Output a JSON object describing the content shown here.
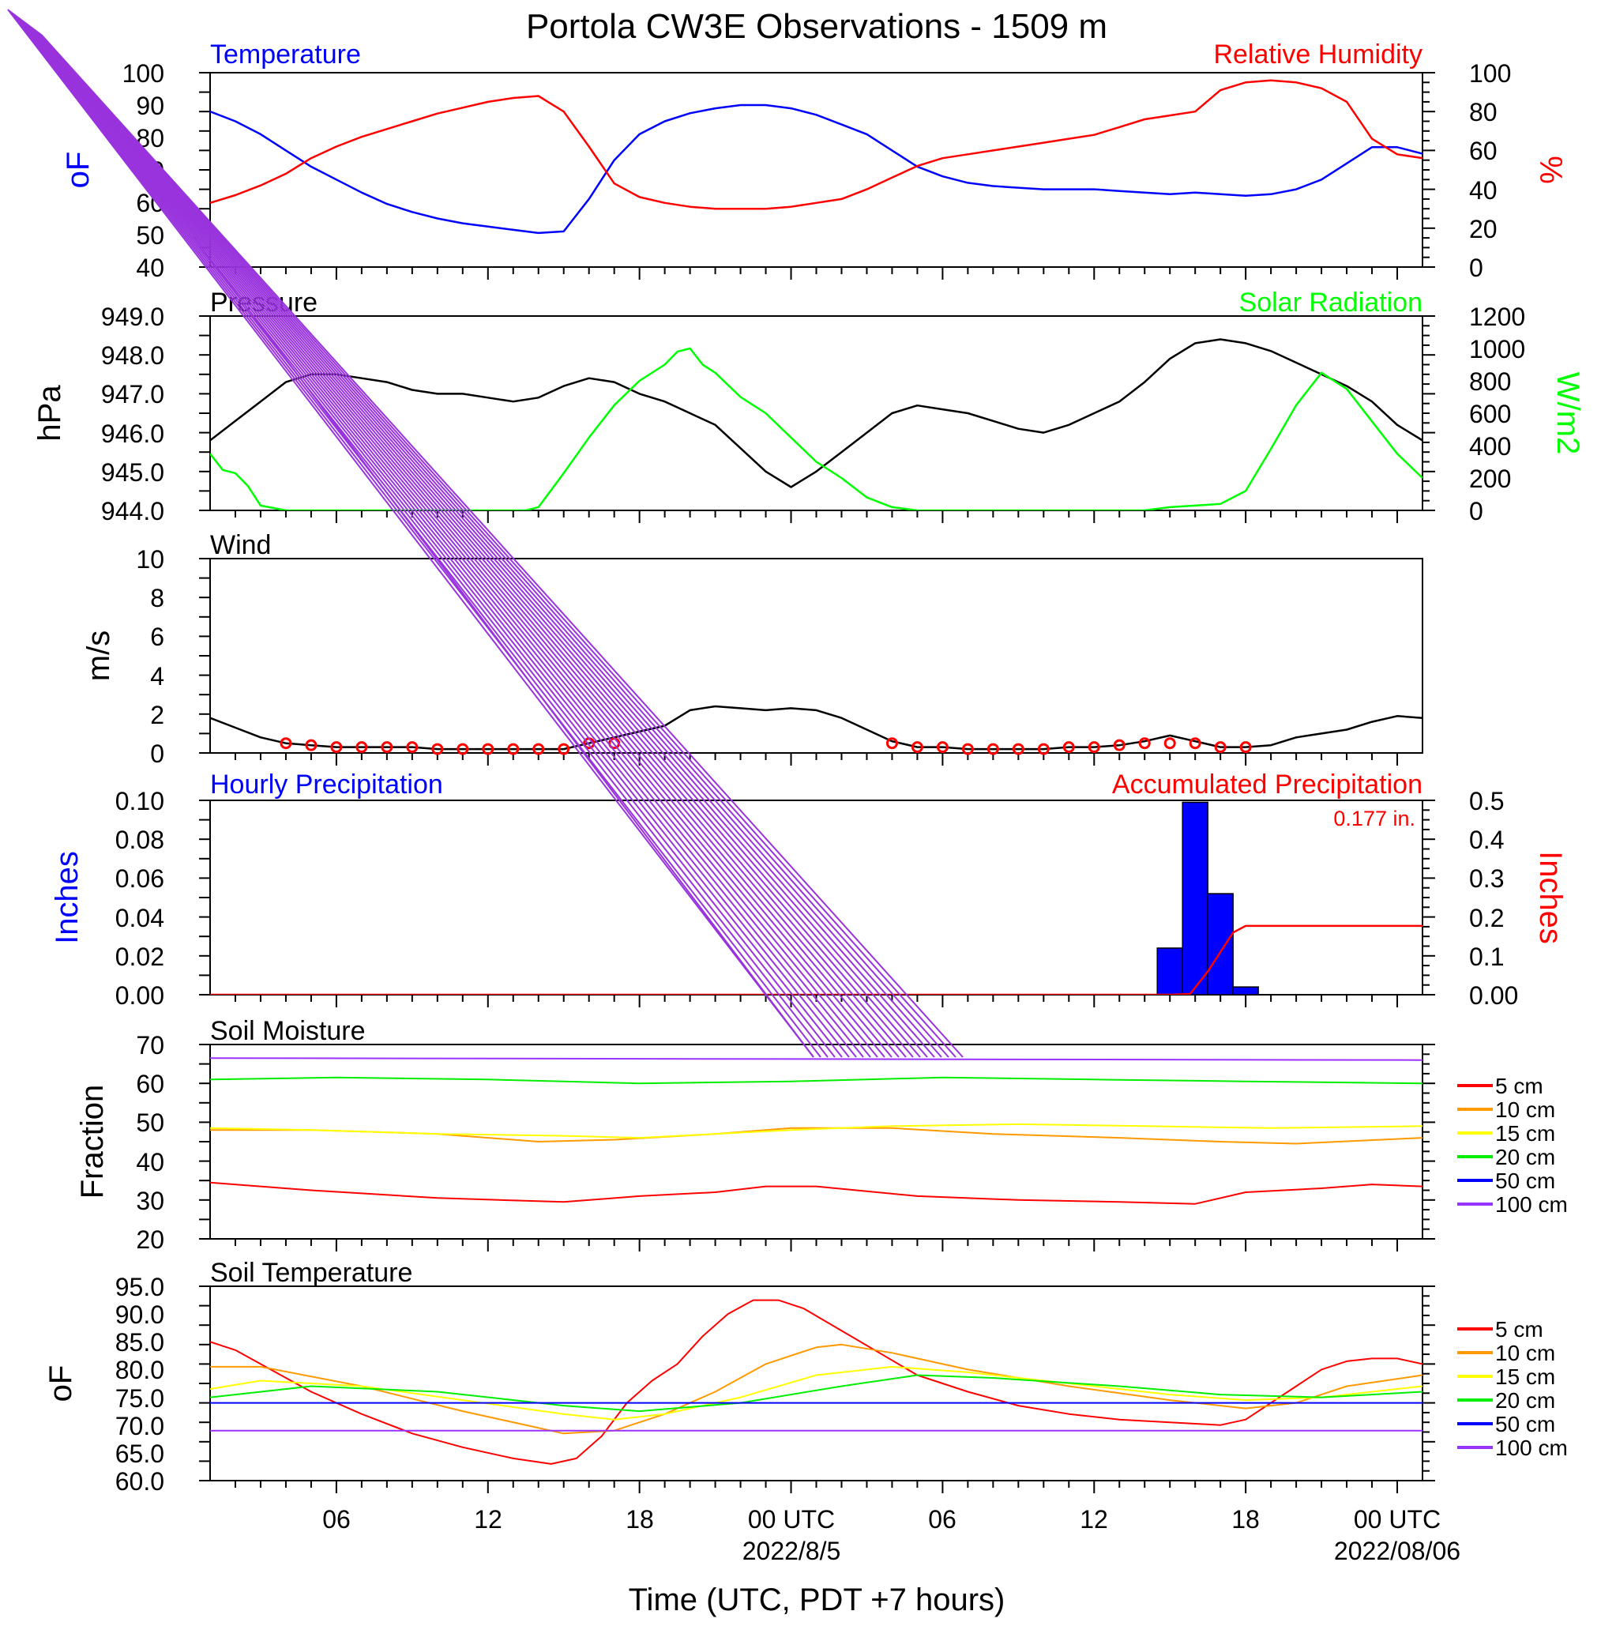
{
  "title": "Portola CW3E Observations - 1509 m",
  "x_axis": {
    "label": "Time (UTC, PDT +7 hours)",
    "ticks": [
      "06",
      "12",
      "18",
      "00 UTC",
      "06",
      "12",
      "18",
      "00 UTC"
    ],
    "dates": [
      "2022/8/5",
      "2022/08/06"
    ]
  },
  "panels": {
    "temp_rh": {
      "left_title": "Temperature",
      "right_title": "Relative Humidity",
      "left_unit": "oF",
      "right_unit": "%",
      "left_ticks": [
        "100",
        "90",
        "80",
        "70",
        "60",
        "50",
        "40"
      ],
      "right_ticks": [
        "100",
        "80",
        "60",
        "40",
        "20",
        "0"
      ]
    },
    "pressure_solar": {
      "left_title": "Pressure",
      "right_title": "Solar Radiation",
      "left_unit": "hPa",
      "right_unit": "W/m2",
      "left_ticks": [
        "949.0",
        "948.0",
        "947.0",
        "946.0",
        "945.0",
        "944.0"
      ],
      "right_ticks": [
        "1200",
        "1000",
        "800",
        "600",
        "400",
        "200",
        "0"
      ]
    },
    "wind": {
      "title": "Wind",
      "unit": "m/s",
      "ticks": [
        "10",
        "8",
        "6",
        "4",
        "2",
        "0"
      ]
    },
    "precip": {
      "left_title": "Hourly Precipitation",
      "right_title": "Accumulated Precipitation",
      "total": "0.177 in.",
      "left_unit": "Inches",
      "right_unit": "Inches",
      "left_ticks": [
        "0.10",
        "0.08",
        "0.06",
        "0.04",
        "0.02",
        "0.00"
      ],
      "right_ticks": [
        "0.5",
        "0.4",
        "0.3",
        "0.2",
        "0.1",
        "0.00"
      ]
    },
    "soil_moisture": {
      "title": "Soil Moisture",
      "unit": "Fraction",
      "ticks": [
        "70",
        "60",
        "50",
        "40",
        "30",
        "20"
      ]
    },
    "soil_temp": {
      "title": "Soil Temperature",
      "unit": "oF",
      "ticks": [
        "95.0",
        "90.0",
        "85.0",
        "80.0",
        "75.0",
        "70.0",
        "65.0",
        "60.0"
      ]
    }
  },
  "depth_legend": [
    {
      "label": "5 cm",
      "color": "#ff0000"
    },
    {
      "label": "10 cm",
      "color": "#ff9900"
    },
    {
      "label": "15 cm",
      "color": "#ffff00"
    },
    {
      "label": "20 cm",
      "color": "#00ee00"
    },
    {
      "label": "50 cm",
      "color": "#0000ff"
    },
    {
      "label": "100 cm",
      "color": "#9933ff"
    }
  ],
  "colors": {
    "temperature": "#0000ff",
    "humidity": "#ff0000",
    "pressure": "#000000",
    "solar": "#00ff00",
    "wind_speed": "#000000",
    "wind_barbs": "#ff0000",
    "hourly_precip": "#0000ff",
    "accum_precip": "#ff0000",
    "artifact_lines": "#9933dd"
  },
  "chart_data": {
    "type": "line",
    "x_unit": "hours since 2022-08-04 00 UTC",
    "x_range": [
      1,
      49
    ],
    "series": [
      {
        "name": "Temperature",
        "panel": "temp_rh",
        "axis": "left",
        "ylim": [
          40,
          100
        ],
        "x": [
          1,
          2,
          3,
          4,
          5,
          6,
          7,
          8,
          9,
          10,
          11,
          12,
          13,
          14,
          15,
          16,
          17,
          18,
          19,
          20,
          21,
          22,
          23,
          24,
          25,
          26,
          27,
          28,
          29,
          30,
          31,
          32,
          33,
          34,
          35,
          36,
          37,
          38,
          39,
          40,
          41,
          42,
          43,
          44,
          45,
          46,
          47,
          48,
          49
        ],
        "y": [
          88,
          85,
          81,
          76,
          71,
          67,
          63,
          59.5,
          57,
          55,
          53.5,
          52.5,
          51.5,
          50.5,
          51,
          61,
          73,
          81,
          85,
          87.5,
          89,
          90,
          90,
          89,
          87,
          84,
          81,
          76,
          71,
          68,
          66,
          65,
          64.5,
          64,
          64,
          64,
          63.5,
          63,
          62.5,
          63,
          62.5,
          62,
          62.5,
          64,
          67,
          72,
          77,
          77,
          75
        ]
      },
      {
        "name": "Relative Humidity",
        "panel": "temp_rh",
        "axis": "right",
        "ylim": [
          0,
          100
        ],
        "x": [
          1,
          2,
          3,
          4,
          5,
          6,
          7,
          8,
          9,
          10,
          11,
          12,
          13,
          14,
          15,
          16,
          17,
          18,
          19,
          20,
          21,
          22,
          23,
          24,
          25,
          26,
          27,
          28,
          29,
          30,
          31,
          32,
          33,
          34,
          35,
          36,
          37,
          38,
          39,
          40,
          41,
          42,
          43,
          44,
          45,
          46,
          47,
          48,
          49
        ],
        "y": [
          33,
          37,
          42,
          48,
          56,
          62,
          67,
          71,
          75,
          79,
          82,
          85,
          87,
          88,
          80,
          62,
          43,
          36,
          33,
          31,
          30,
          30,
          30,
          31,
          33,
          35,
          40,
          46,
          52,
          56,
          58,
          60,
          62,
          64,
          66,
          68,
          72,
          76,
          78,
          80,
          91,
          95,
          96,
          95,
          92,
          85,
          66,
          58,
          56
        ]
      },
      {
        "name": "Pressure",
        "panel": "pressure_solar",
        "axis": "left",
        "ylim": [
          944,
          949
        ],
        "x": [
          1,
          2,
          3,
          4,
          5,
          6,
          7,
          8,
          9,
          10,
          11,
          12,
          13,
          14,
          15,
          16,
          17,
          18,
          19,
          20,
          21,
          22,
          23,
          24,
          25,
          26,
          27,
          28,
          29,
          30,
          31,
          32,
          33,
          34,
          35,
          36,
          37,
          38,
          39,
          40,
          41,
          42,
          43,
          44,
          45,
          46,
          47,
          48,
          49
        ],
        "y": [
          945.8,
          946.3,
          946.8,
          947.3,
          947.5,
          947.5,
          947.4,
          947.3,
          947.1,
          947.0,
          947.0,
          946.9,
          946.8,
          946.9,
          947.2,
          947.4,
          947.3,
          947.0,
          946.8,
          946.5,
          946.2,
          945.6,
          945.0,
          944.6,
          945.0,
          945.5,
          946.0,
          946.5,
          946.7,
          946.6,
          946.5,
          946.3,
          946.1,
          946.0,
          946.2,
          946.5,
          946.8,
          947.3,
          947.9,
          948.3,
          948.4,
          948.3,
          948.1,
          947.8,
          947.5,
          947.2,
          946.8,
          946.2,
          945.8
        ]
      },
      {
        "name": "Solar Radiation",
        "panel": "pressure_solar",
        "axis": "right",
        "ylim": [
          0,
          1200
        ],
        "x": [
          1,
          1.5,
          2,
          2.5,
          3,
          4,
          8,
          12,
          13.5,
          14,
          15,
          16,
          17,
          18,
          19,
          19.5,
          20,
          20.5,
          21,
          22,
          23,
          24,
          25,
          26,
          27,
          28,
          29,
          31,
          35,
          38,
          39,
          40,
          41,
          42,
          43,
          44,
          45,
          46,
          47,
          48,
          49
        ],
        "y": [
          350,
          250,
          230,
          150,
          30,
          0,
          0,
          0,
          0,
          20,
          230,
          450,
          650,
          800,
          900,
          980,
          1000,
          900,
          850,
          700,
          600,
          450,
          300,
          200,
          80,
          20,
          0,
          0,
          0,
          0,
          20,
          30,
          40,
          120,
          380,
          650,
          850,
          750,
          550,
          350,
          200
        ]
      },
      {
        "name": "Wind Speed",
        "panel": "wind",
        "axis": "left",
        "ylim": [
          0,
          10
        ],
        "x": [
          1,
          2,
          3,
          4,
          5,
          6,
          7,
          8,
          9,
          10,
          11,
          12,
          13,
          14,
          15,
          16,
          17,
          18,
          19,
          20,
          21,
          22,
          23,
          24,
          25,
          26,
          27,
          28,
          29,
          30,
          31,
          32,
          33,
          34,
          35,
          36,
          37,
          38,
          39,
          40,
          41,
          42,
          43,
          44,
          45,
          46,
          47,
          48,
          49
        ],
        "y": [
          1.8,
          1.3,
          0.8,
          0.5,
          0.4,
          0.3,
          0.3,
          0.3,
          0.3,
          0.2,
          0.2,
          0.2,
          0.2,
          0.2,
          0.2,
          0.5,
          0.8,
          1.1,
          1.4,
          2.2,
          2.4,
          2.3,
          2.2,
          2.3,
          2.2,
          1.8,
          1.2,
          0.6,
          0.3,
          0.3,
          0.2,
          0.2,
          0.2,
          0.2,
          0.3,
          0.3,
          0.4,
          0.6,
          0.9,
          0.6,
          0.3,
          0.3,
          0.4,
          0.8,
          1.0,
          1.2,
          1.6,
          1.9,
          1.8
        ]
      },
      {
        "name": "Hourly Precipitation",
        "panel": "precip",
        "axis": "left",
        "type": "bar",
        "ylim": [
          0,
          0.1
        ],
        "x": [
          39,
          40,
          41,
          42
        ],
        "y": [
          0.024,
          0.099,
          0.052,
          0.004
        ]
      },
      {
        "name": "Accumulated Precipitation",
        "panel": "precip",
        "axis": "right",
        "ylim": [
          0,
          0.5
        ],
        "x": [
          1,
          39,
          39.8,
          40.5,
          41,
          41.5,
          42,
          49
        ],
        "y": [
          0,
          0,
          0.002,
          0.06,
          0.11,
          0.16,
          0.177,
          0.177
        ]
      },
      {
        "name": "5 cm",
        "panel": "soil_moisture",
        "ylim": [
          20,
          70
        ],
        "x": [
          1,
          5,
          10,
          15,
          18,
          21,
          23,
          25,
          29,
          33,
          37,
          40,
          42,
          45,
          47,
          49
        ],
        "y": [
          34.5,
          32.5,
          30.5,
          29.5,
          31,
          32,
          33.5,
          33.5,
          31,
          30,
          29.5,
          29,
          32,
          33,
          34,
          33.5
        ]
      },
      {
        "name": "10 cm",
        "panel": "soil_moisture",
        "ylim": [
          20,
          70
        ],
        "x": [
          1,
          5,
          10,
          14,
          17,
          21,
          24,
          28,
          32,
          37,
          41,
          44,
          49
        ],
        "y": [
          48,
          48,
          47,
          45,
          45.5,
          47,
          48.5,
          48.5,
          47,
          46,
          45,
          44.5,
          46
        ]
      },
      {
        "name": "15 cm",
        "panel": "soil_moisture",
        "ylim": [
          20,
          70
        ],
        "x": [
          1,
          5,
          10,
          15,
          18,
          24,
          28,
          33,
          38,
          43,
          49
        ],
        "y": [
          48.5,
          48,
          47,
          46.5,
          46,
          48,
          49,
          49.5,
          49,
          48.5,
          49
        ]
      },
      {
        "name": "20 cm",
        "panel": "soil_moisture",
        "ylim": [
          20,
          70
        ],
        "x": [
          1,
          6,
          12,
          18,
          24,
          30,
          36,
          42,
          49
        ],
        "y": [
          61,
          61.5,
          61,
          60,
          60.5,
          61.5,
          61,
          60.5,
          60
        ]
      },
      {
        "name": "100 cm",
        "panel": "soil_moisture",
        "ylim": [
          20,
          70
        ],
        "x": [
          1,
          49
        ],
        "y": [
          66.5,
          66
        ]
      },
      {
        "name": "5 cm",
        "panel": "soil_temp",
        "ylim": [
          60,
          95
        ],
        "x": [
          1,
          2,
          3,
          5,
          7,
          9,
          11,
          13,
          14.5,
          15.5,
          16.5,
          17.5,
          18.5,
          19.5,
          20.5,
          21.5,
          22.5,
          23.5,
          24.5,
          26,
          27.5,
          29,
          31,
          33,
          35,
          37,
          39,
          41,
          42,
          43,
          44,
          45,
          46,
          47,
          48,
          49
        ],
        "y": [
          85,
          83.5,
          81,
          76,
          72,
          68.5,
          66,
          64,
          63,
          64,
          68,
          74,
          78,
          81,
          86,
          90,
          92.5,
          92.5,
          91,
          87,
          83,
          79,
          76,
          73.5,
          72,
          71,
          70.5,
          70,
          71,
          74,
          77,
          80,
          81.5,
          82,
          82,
          81
        ]
      },
      {
        "name": "10 cm",
        "panel": "soil_temp",
        "ylim": [
          60,
          95
        ],
        "x": [
          1,
          3,
          7,
          11,
          15,
          17,
          19,
          21,
          23,
          25,
          26,
          28,
          31,
          35,
          39,
          42,
          44,
          46,
          49
        ],
        "y": [
          80.5,
          80.5,
          77,
          72.5,
          68.5,
          69,
          72,
          76,
          81,
          84,
          84.5,
          83,
          80,
          77,
          74.5,
          73,
          74,
          77,
          79
        ]
      },
      {
        "name": "15 cm",
        "panel": "soil_temp",
        "ylim": [
          60,
          95
        ],
        "x": [
          1,
          3,
          7,
          11,
          15,
          17,
          19,
          22,
          25,
          28,
          31,
          35,
          39,
          42,
          45,
          49
        ],
        "y": [
          76.5,
          78,
          77,
          74.5,
          72,
          71,
          72,
          75,
          79,
          80.5,
          79.5,
          77.5,
          75.5,
          74.5,
          75,
          77
        ]
      },
      {
        "name": "20 cm",
        "panel": "soil_temp",
        "ylim": [
          60,
          95
        ],
        "x": [
          1,
          5,
          10,
          15,
          18,
          22,
          26,
          29,
          32,
          37,
          41,
          45,
          49
        ],
        "y": [
          75,
          77,
          76,
          73.5,
          72.5,
          74,
          77,
          79,
          78.5,
          77,
          75.5,
          75,
          76
        ]
      },
      {
        "name": "50 cm",
        "panel": "soil_temp",
        "ylim": [
          60,
          95
        ],
        "x": [
          1,
          49
        ],
        "y": [
          74,
          74
        ]
      },
      {
        "name": "100 cm",
        "panel": "soil_temp",
        "ylim": [
          60,
          95
        ],
        "x": [
          1,
          49
        ],
        "y": [
          69,
          69
        ]
      }
    ]
  }
}
